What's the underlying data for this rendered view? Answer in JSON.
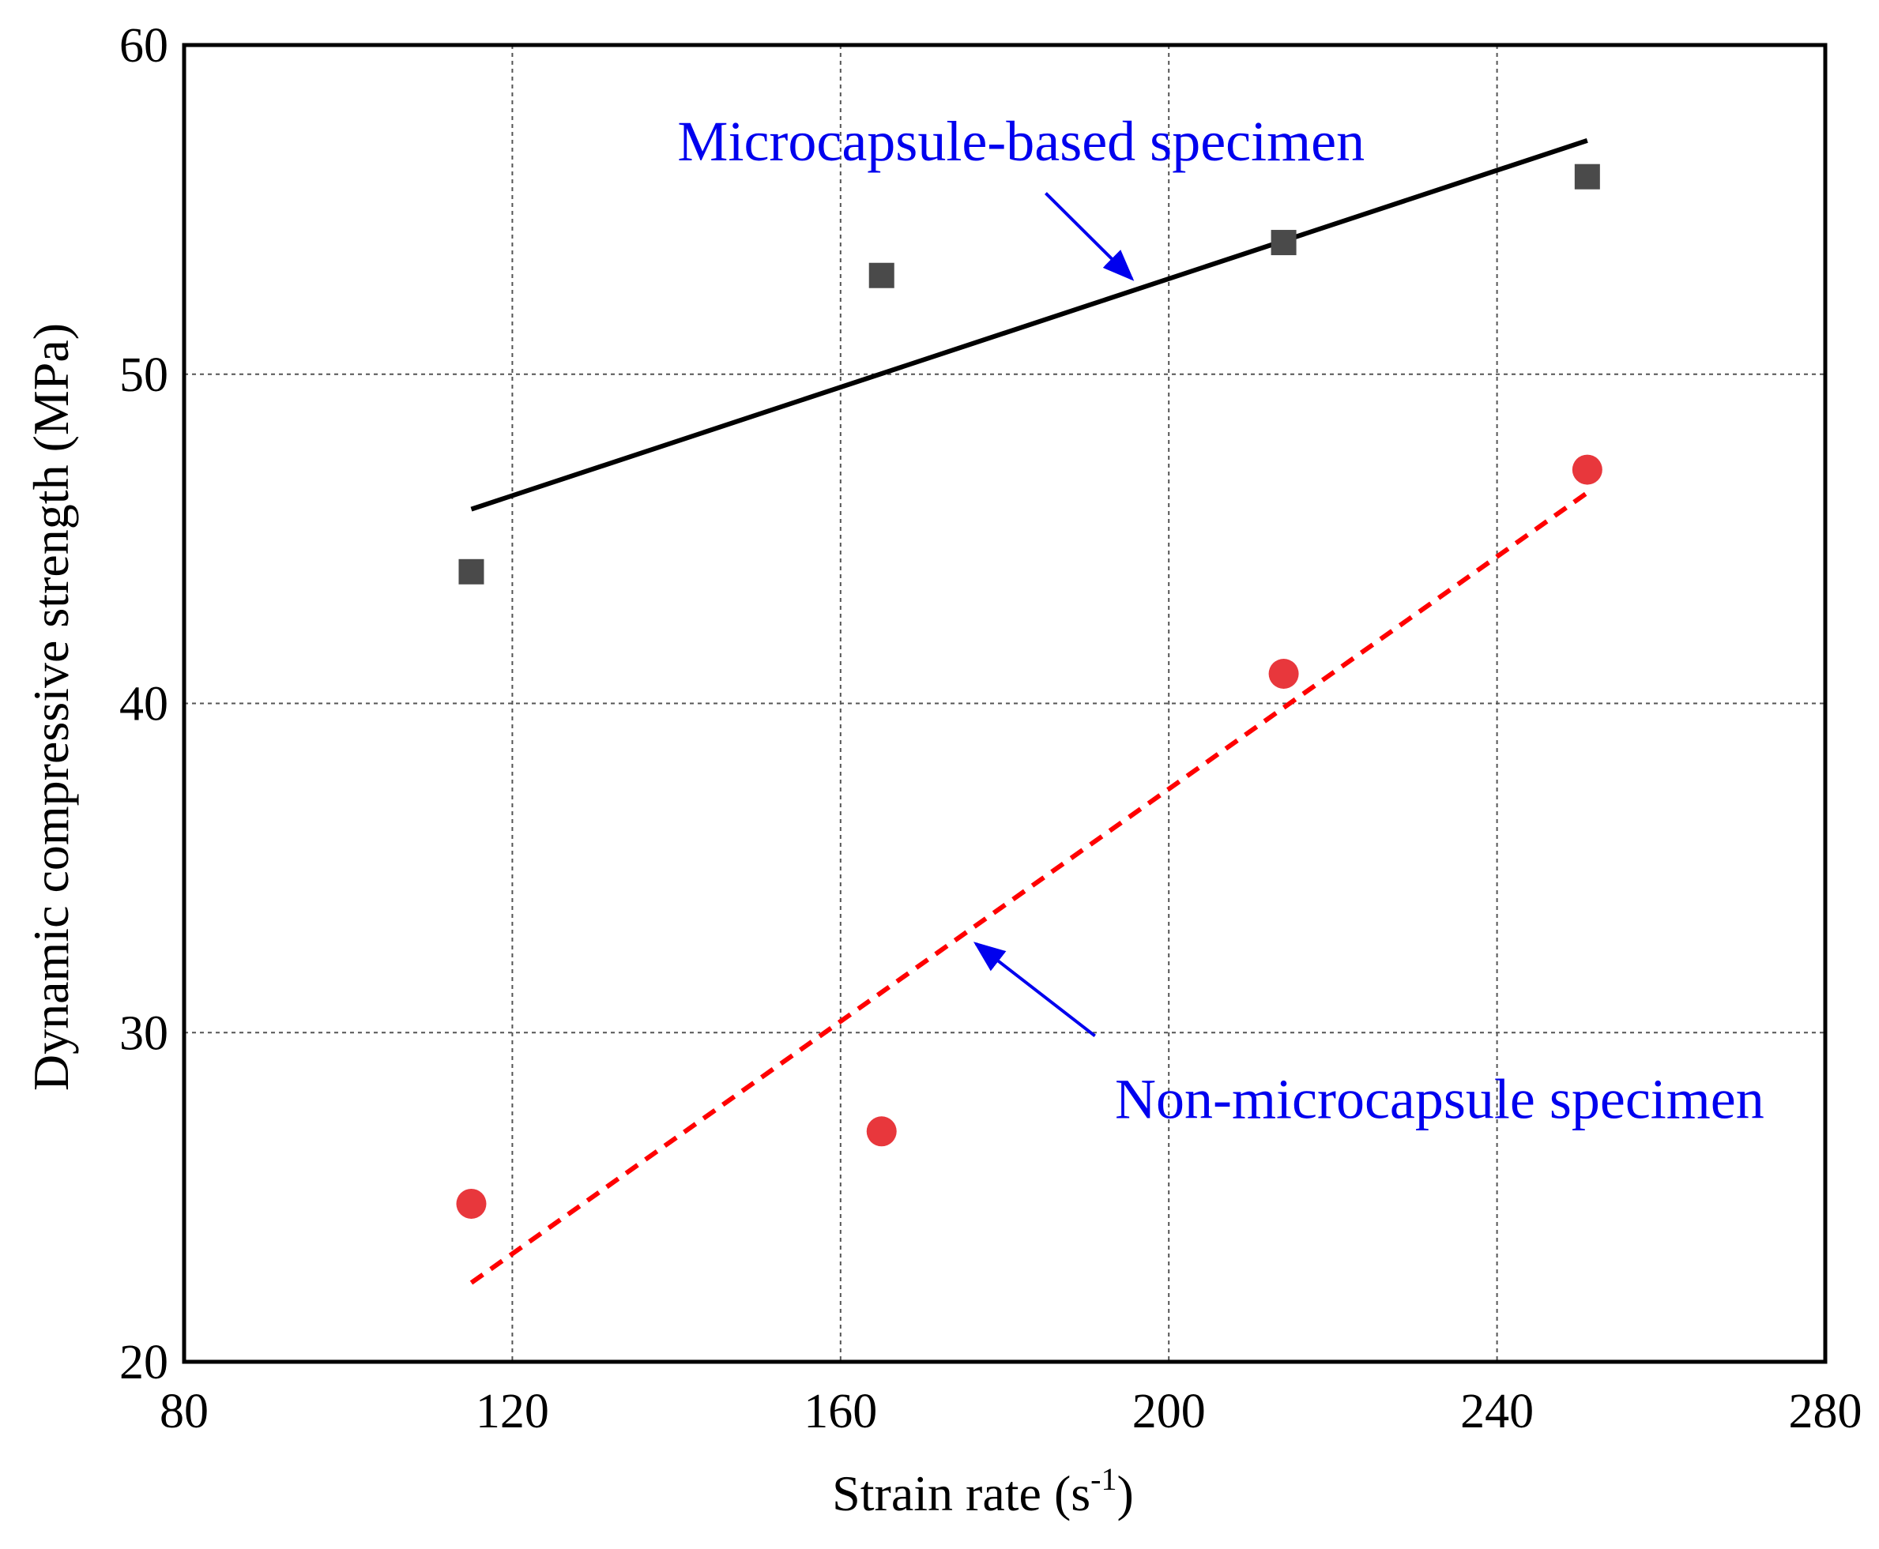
{
  "chart_data": {
    "type": "scatter",
    "title": "",
    "xlabel": "Strain rate (s",
    "xlabel_sup": "-1",
    "xlabel_suffix": ")",
    "ylabel": "Dynamic compressive strength (MPa)",
    "xlim": [
      80,
      280
    ],
    "ylim": [
      20,
      60
    ],
    "xticks": [
      80,
      120,
      160,
      200,
      240,
      280
    ],
    "yticks": [
      20,
      30,
      40,
      50,
      60
    ],
    "xtick_labels": [
      "80",
      "120",
      "160",
      "200",
      "240",
      "280"
    ],
    "ytick_labels": [
      "20",
      "30",
      "40",
      "50",
      "60"
    ],
    "grid": true,
    "series": [
      {
        "name": "Microcapsule-based specimen",
        "marker": "square",
        "color": "#4a4a4a",
        "x": [
          115,
          165,
          214,
          251
        ],
        "y": [
          44.0,
          53.0,
          54.0,
          56.0
        ],
        "fit": {
          "x": [
            115,
            251
          ],
          "y": [
            45.9,
            57.1
          ],
          "style": "solid",
          "color": "#000000"
        }
      },
      {
        "name": "Non-microcapsule specimen",
        "marker": "circle",
        "color": "#e8373c",
        "x": [
          115,
          165,
          214,
          251
        ],
        "y": [
          24.8,
          27.0,
          40.9,
          47.1
        ],
        "fit": {
          "x": [
            115,
            251
          ],
          "y": [
            22.4,
            46.4
          ],
          "style": "dashed",
          "color": "#ff0000"
        }
      }
    ],
    "annotations": [
      {
        "text": "Microcapsule-based specimen",
        "color": "#0000ee",
        "text_at": [
          182,
          56.5
        ],
        "arrow_from": [
          185,
          55.5
        ],
        "arrow_to": [
          195.5,
          52.9
        ]
      },
      {
        "text": "Non-microcapsule specimen",
        "color": "#0000ee",
        "text_at": [
          233,
          27.4
        ],
        "arrow_from": [
          191,
          29.9
        ],
        "arrow_to": [
          176.5,
          32.7
        ]
      }
    ]
  }
}
